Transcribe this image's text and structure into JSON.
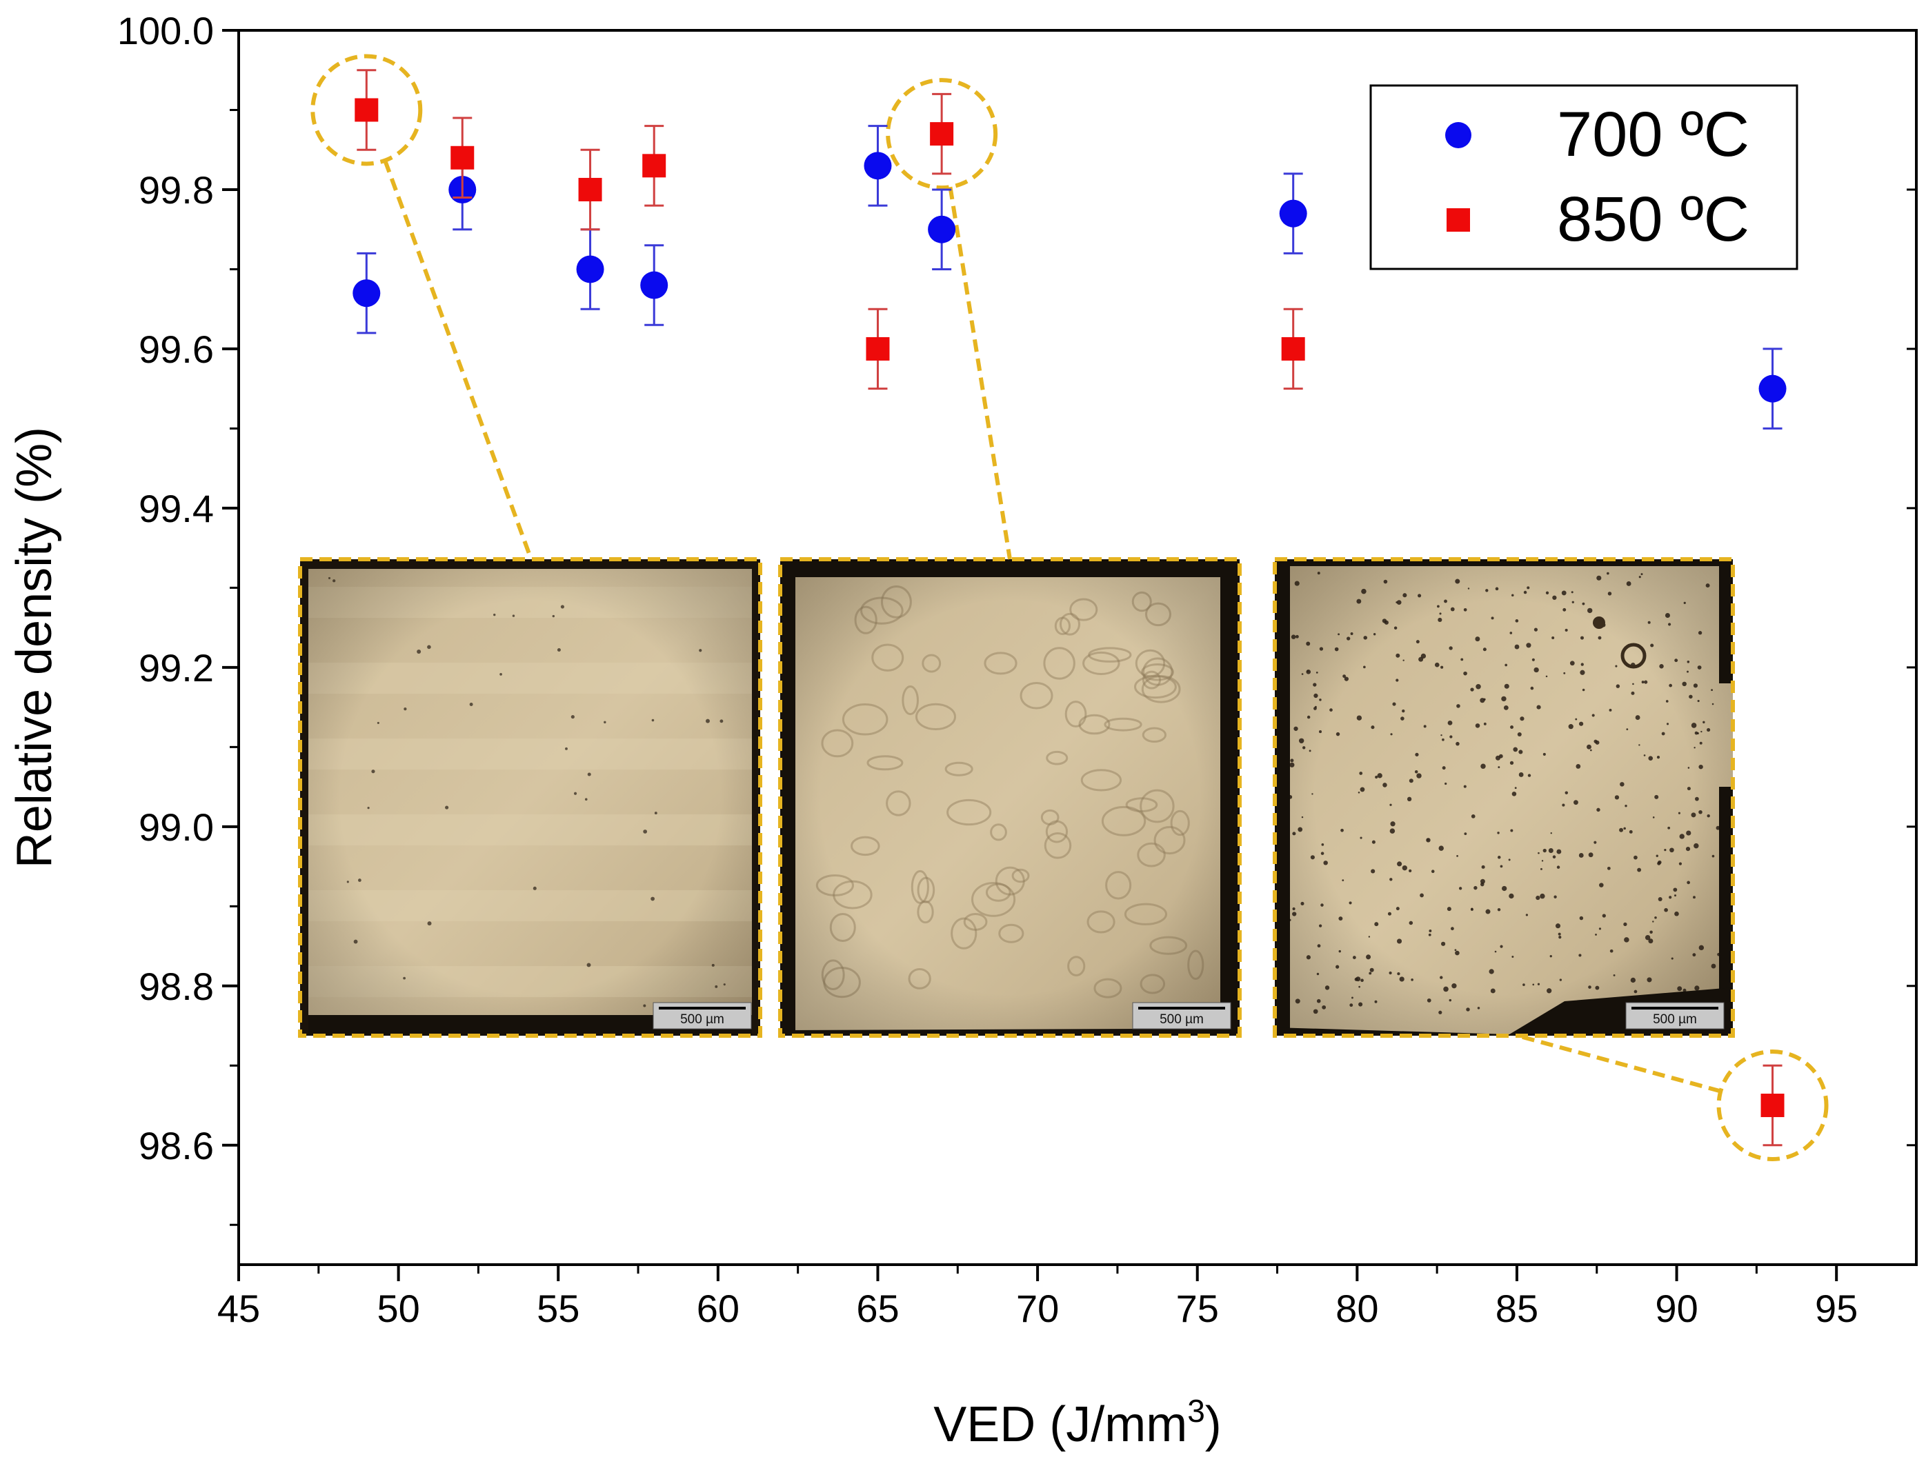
{
  "chart_data": {
    "type": "scatter",
    "xlabel": "VED (J/mm",
    "xlabel_sup": "3",
    "xlabel_suffix": ")",
    "ylabel": "Relative density (%)",
    "xlim": [
      45,
      97.5
    ],
    "ylim": [
      98.45,
      100.0
    ],
    "x_ticks": [
      45,
      50,
      55,
      60,
      65,
      70,
      75,
      80,
      85,
      90,
      95
    ],
    "y_ticks": [
      98.6,
      98.8,
      99.0,
      99.2,
      99.4,
      99.6,
      99.8,
      100.0
    ],
    "y_tick_labels": [
      "98.6",
      "98.8",
      "99.0",
      "99.2",
      "99.4",
      "99.6",
      "99.8",
      "100.0"
    ],
    "legend_position": "top-right",
    "series": [
      {
        "name": "700 ºC",
        "marker": "circle",
        "color": "#0a0aee",
        "error_color": "#3a3ad8",
        "points": [
          {
            "x": 49,
            "y": 99.67,
            "err": 0.05
          },
          {
            "x": 52,
            "y": 99.8,
            "err": 0.05
          },
          {
            "x": 56,
            "y": 99.7,
            "err": 0.05
          },
          {
            "x": 58,
            "y": 99.68,
            "err": 0.05
          },
          {
            "x": 65,
            "y": 99.83,
            "err": 0.05
          },
          {
            "x": 67,
            "y": 99.75,
            "err": 0.05
          },
          {
            "x": 78,
            "y": 99.77,
            "err": 0.05
          },
          {
            "x": 93,
            "y": 99.55,
            "err": 0.05
          }
        ]
      },
      {
        "name": "850 ºC",
        "marker": "square",
        "color": "#ee0a0a",
        "error_color": "#d04040",
        "points": [
          {
            "x": 49,
            "y": 99.9,
            "err": 0.05
          },
          {
            "x": 52,
            "y": 99.84,
            "err": 0.05
          },
          {
            "x": 56,
            "y": 99.8,
            "err": 0.05
          },
          {
            "x": 58,
            "y": 99.83,
            "err": 0.05
          },
          {
            "x": 65,
            "y": 99.6,
            "err": 0.05
          },
          {
            "x": 67,
            "y": 99.87,
            "err": 0.05
          },
          {
            "x": 78,
            "y": 99.6,
            "err": 0.05
          },
          {
            "x": 93,
            "y": 98.65,
            "err": 0.05
          }
        ]
      }
    ],
    "highlighted_points": [
      {
        "series": "850 ºC",
        "x": 49,
        "y": 99.9
      },
      {
        "series": "850 ºC",
        "x": 67,
        "y": 99.87
      },
      {
        "series": "850 ºC",
        "x": 93,
        "y": 98.65
      }
    ],
    "insets": [
      {
        "name": "micrograph-ved-49",
        "scale_bar": "500 µm",
        "linked_x": 49,
        "linked_y": 99.9
      },
      {
        "name": "micrograph-ved-67",
        "scale_bar": "500 µm",
        "linked_x": 67,
        "linked_y": 99.87
      },
      {
        "name": "micrograph-ved-93",
        "scale_bar": "500 µm",
        "linked_x": 93,
        "linked_y": 98.65
      }
    ],
    "highlight_color": "#e6b420"
  }
}
